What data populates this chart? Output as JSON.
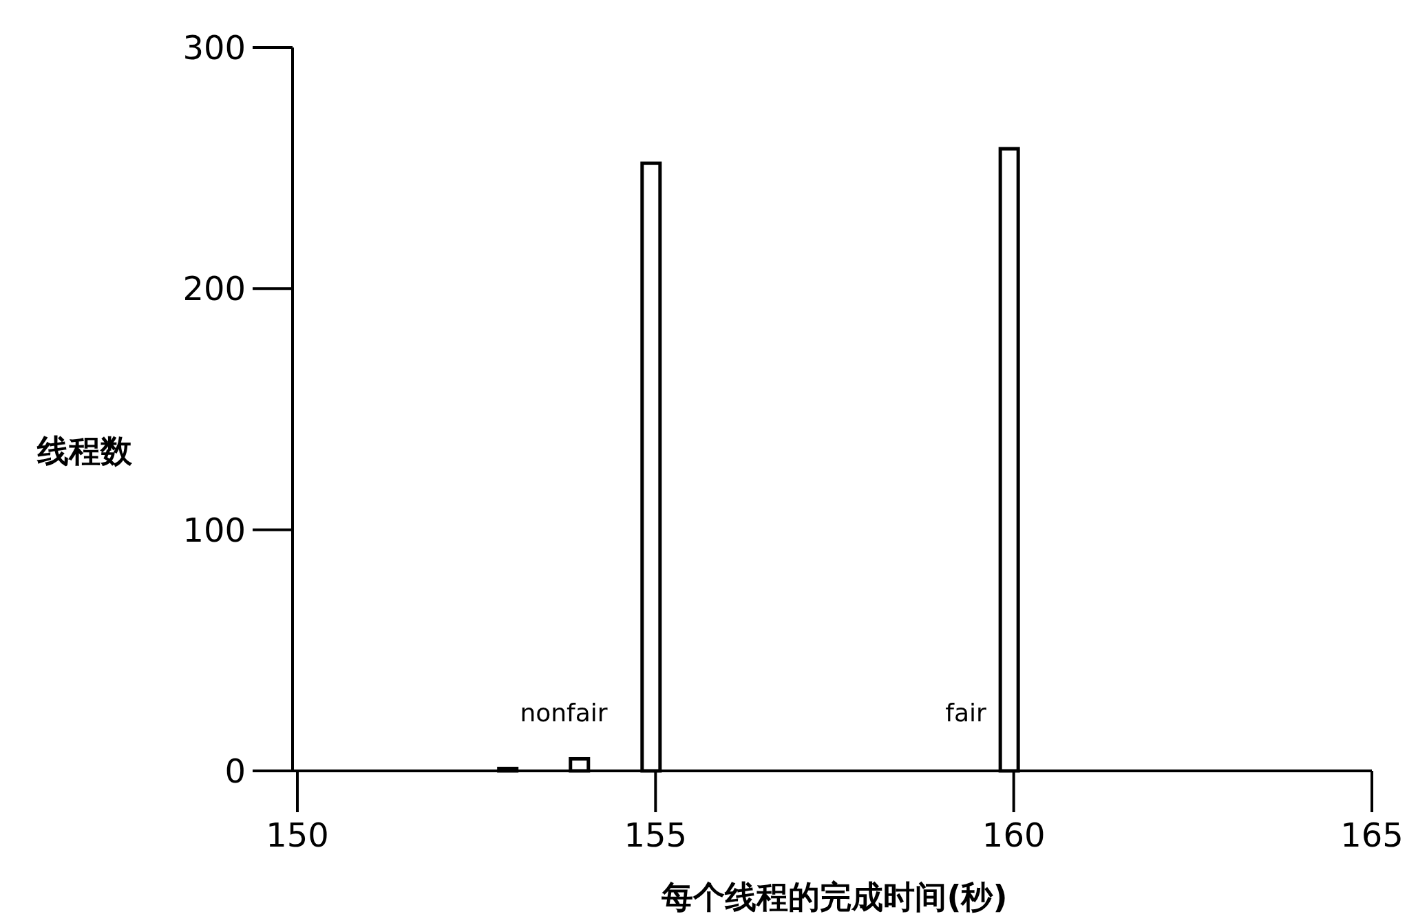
{
  "chart_data": {
    "type": "bar",
    "xlabel": "每个线程的完成时间(秒)",
    "ylabel": "线程数",
    "x": [
      153,
      154,
      155,
      160
    ],
    "values": [
      1,
      5,
      252,
      258
    ],
    "color": "#ffffff",
    "xlim": [
      150,
      165
    ],
    "xticks": [
      150,
      155,
      160,
      165
    ],
    "ylim": [
      0,
      300
    ],
    "yticks": [
      0,
      100,
      200,
      300
    ],
    "grid": false,
    "annotations": [
      "nonfair",
      "fair"
    ]
  }
}
